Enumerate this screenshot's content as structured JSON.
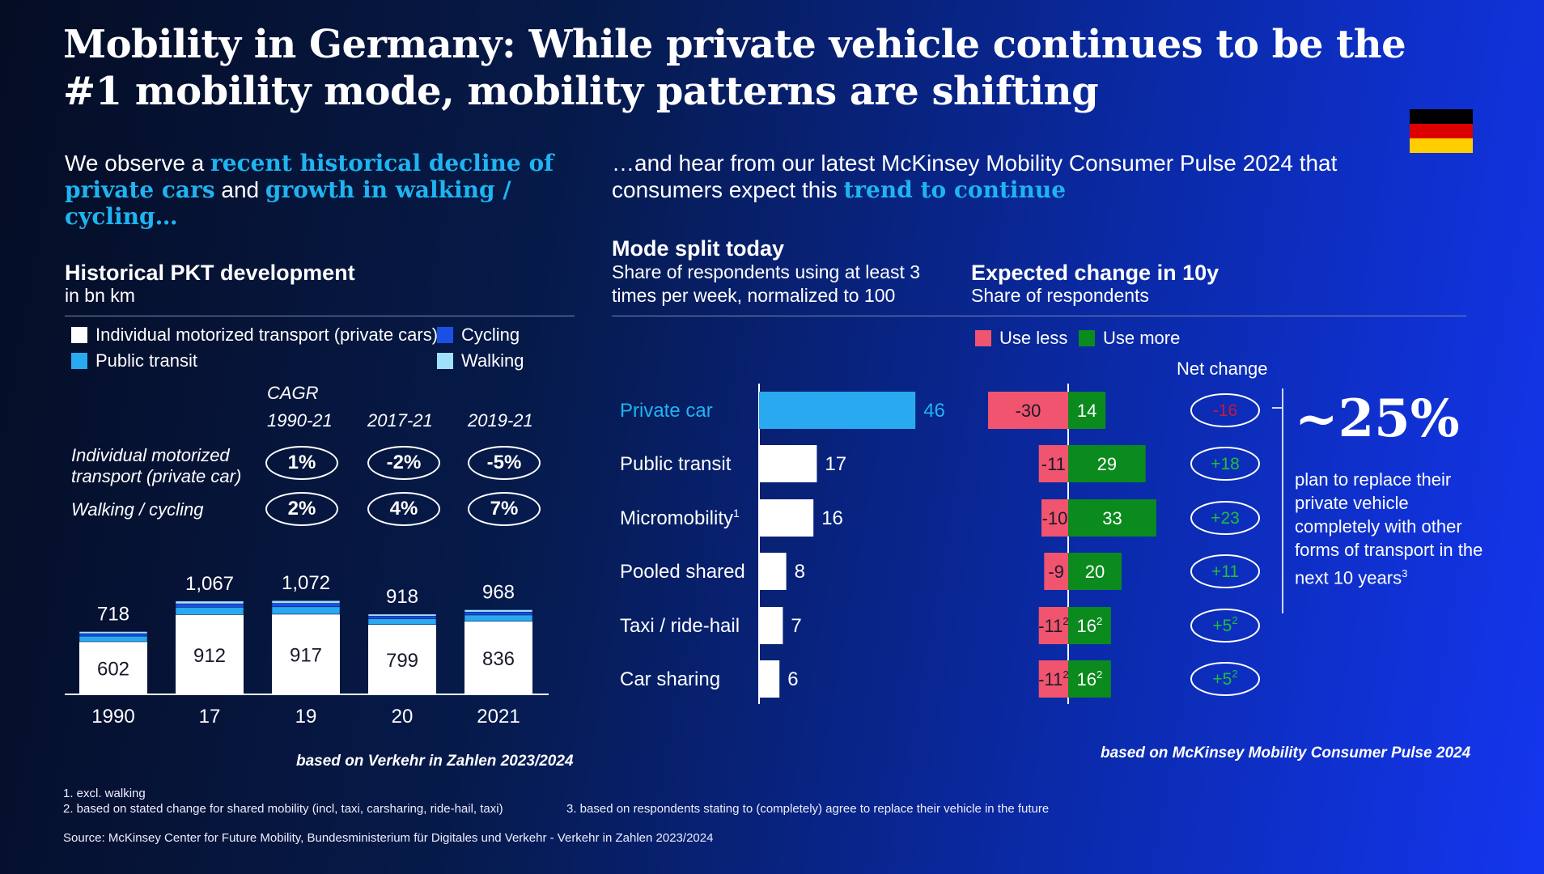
{
  "title": "Mobility in Germany: While private vehicle continues to be the #1 mobility mode, mobility patterns are shifting",
  "intro_left": {
    "p1": "We observe a ",
    "h1": "recent historical decline of private cars",
    "p2": " and ",
    "h2": "growth in walking / cycling",
    "p3": "…"
  },
  "intro_right": {
    "p1": "…and hear from our latest McKinsey Mobility Consumer Pulse 2024 that consumers expect this ",
    "h1": "trend to continue"
  },
  "historical": {
    "heading": "Historical PKT development",
    "unit": "in bn km",
    "legend": {
      "imt": "Individual motorized transport (private cars)",
      "cycling": "Cycling",
      "public": "Public transit",
      "walking": "Walking"
    },
    "cagr_label": "CAGR",
    "periods": [
      "1990-21",
      "2017-21",
      "2019-21"
    ],
    "rows": [
      {
        "label": "Individual motorized transport (private car)",
        "values": [
          "1%",
          "-2%",
          "-5%"
        ]
      },
      {
        "label": "Walking / cycling",
        "values": [
          "2%",
          "4%",
          "7%"
        ]
      }
    ],
    "note": "based on Verkehr in Zahlen 2023/2024"
  },
  "mode_split": {
    "heading": "Mode split today",
    "sub": "Share of respondents using at least 3 times per week, normalized to 100"
  },
  "expected": {
    "heading": "Expected change in 10y",
    "sub": "Share of respondents",
    "legend_less": "Use less",
    "legend_more": "Use more",
    "net_label": "Net change",
    "note": "based on McKinsey Mobility Consumer Pulse 2024"
  },
  "callout": {
    "big": "~25%",
    "text": "plan to replace their private vehicle completely with other forms of transport in the next 10 years",
    "sup": "3"
  },
  "footnotes": {
    "f1": "1.    excl. walking",
    "f2": "2.    based on stated change for shared mobility (incl, taxi, carsharing, ride-hail, taxi)",
    "f3": "3.    based on respondents stating to (completely) agree to replace their vehicle in the future",
    "source": "Source: McKinsey Center for Future Mobility, Bundesministerium für Digitales und Verkehr - Verkehr in Zahlen 2023/2024"
  },
  "colors": {
    "white": "#ffffff",
    "public": "#29a9f0",
    "cycling": "#1c4fe6",
    "walking": "#9fe0fb",
    "highlight": "#1fb4f0",
    "less": "#f0546e",
    "more": "#0b8a1e",
    "net_pos": "#1fbf3a",
    "net_neg": "#c41a3a"
  },
  "chart_data": [
    {
      "type": "bar",
      "title": "Historical PKT development",
      "ylabel": "in bn km",
      "categories": [
        "1990",
        "17",
        "19",
        "20",
        "2021"
      ],
      "totals": [
        718,
        1067,
        1072,
        918,
        968
      ],
      "series": [
        {
          "name": "Individual motorized transport (private cars)",
          "values": [
            602,
            912,
            917,
            799,
            836
          ]
        }
      ]
    },
    {
      "type": "bar",
      "title": "Mode split today",
      "categories": [
        "Private car",
        "Public transit",
        "Micromobility",
        "Pooled shared",
        "Taxi / ride-hail",
        "Car sharing"
      ],
      "sup": [
        "",
        "",
        "1",
        "",
        "",
        ""
      ],
      "values": [
        46,
        17,
        16,
        8,
        7,
        6
      ]
    },
    {
      "type": "bar",
      "title": "Expected change in 10y",
      "categories": [
        "Private car",
        "Public transit",
        "Micromobility",
        "Pooled shared",
        "Taxi / ride-hail",
        "Car sharing"
      ],
      "series": [
        {
          "name": "Use less",
          "values": [
            -30,
            -11,
            -10,
            -9,
            -11,
            -11
          ]
        },
        {
          "name": "Use more",
          "values": [
            14,
            29,
            33,
            20,
            16,
            16
          ]
        }
      ],
      "net_change": [
        "-16",
        "+18",
        "+23",
        "+11",
        "+5",
        "+5"
      ],
      "sup": [
        "",
        "",
        "",
        "",
        "2",
        "2"
      ]
    }
  ]
}
